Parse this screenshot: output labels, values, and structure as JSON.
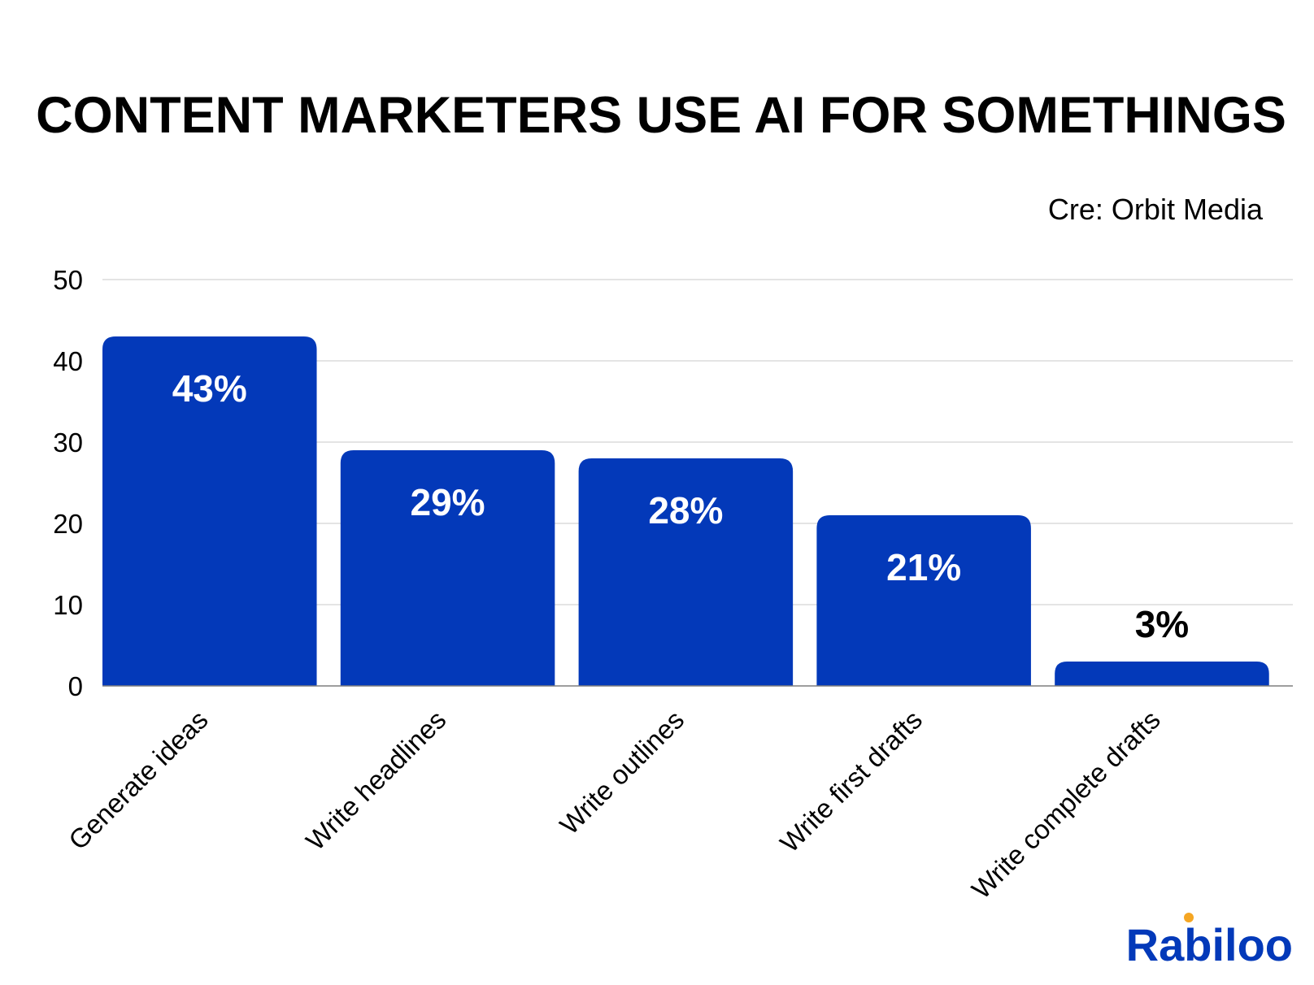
{
  "colors": {
    "bar": "#0339B9",
    "grid": "#D3D3D3",
    "axis": "#7F7F7F",
    "text": "#000000",
    "value_inside": "#FFFFFF",
    "logo_main": "#0339B9",
    "logo_accent": "#F5A623"
  },
  "source": "Cre: Orbit Media",
  "logo": {
    "text": "Rabiloo",
    "accent_icon": "orange-dot-icon"
  },
  "chart_data": {
    "type": "bar",
    "title": "CONTENT MARKETERS USE AI FOR SOMETHINGS",
    "xlabel": "",
    "ylabel": "",
    "categories": [
      "Generate ideas",
      "Write headlines",
      "Write outlines",
      "Write first drafts",
      "Write complete drafts"
    ],
    "values": [
      43,
      29,
      28,
      21,
      3
    ],
    "data_labels": [
      "43%",
      "29%",
      "28%",
      "21%",
      "3%"
    ],
    "ylim": [
      0,
      50
    ],
    "yticks": [
      0,
      10,
      20,
      30,
      40,
      50
    ],
    "ytick_labels": [
      "0",
      "10",
      "20",
      "30",
      "40",
      "50"
    ],
    "grid": true,
    "legend": "none"
  }
}
